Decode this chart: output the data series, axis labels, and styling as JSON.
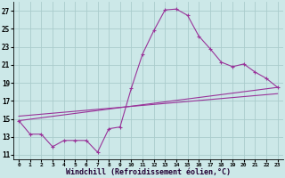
{
  "bg_color": "#cce8e8",
  "line_color": "#993399",
  "grid_color": "#aacccc",
  "xlabel": "Windchill (Refroidissement éolien,°C)",
  "xlabel_fontsize": 6.0,
  "ylabel_ticks": [
    11,
    13,
    15,
    17,
    19,
    21,
    23,
    25,
    27
  ],
  "xlabel_ticks": [
    0,
    1,
    2,
    3,
    4,
    5,
    6,
    7,
    8,
    9,
    10,
    11,
    12,
    13,
    14,
    15,
    16,
    17,
    18,
    19,
    20,
    21,
    22,
    23
  ],
  "xlim": [
    -0.5,
    23.5
  ],
  "ylim": [
    10.5,
    28.0
  ],
  "main_x": [
    0,
    1,
    2,
    3,
    4,
    5,
    6,
    7,
    8,
    9,
    10,
    11,
    12,
    13,
    14,
    15,
    16,
    17,
    18,
    19,
    20,
    21,
    22,
    23
  ],
  "main_y": [
    14.8,
    13.3,
    13.3,
    11.9,
    12.6,
    12.6,
    12.6,
    11.3,
    13.9,
    14.1,
    18.4,
    22.2,
    24.8,
    27.1,
    27.2,
    26.5,
    24.2,
    22.8,
    21.3,
    20.8,
    21.1,
    20.2,
    19.5,
    18.5
  ],
  "line2_x": [
    0,
    23
  ],
  "line2_y": [
    14.8,
    18.5
  ],
  "line3_x": [
    0,
    23
  ],
  "line3_y": [
    15.3,
    17.8
  ]
}
